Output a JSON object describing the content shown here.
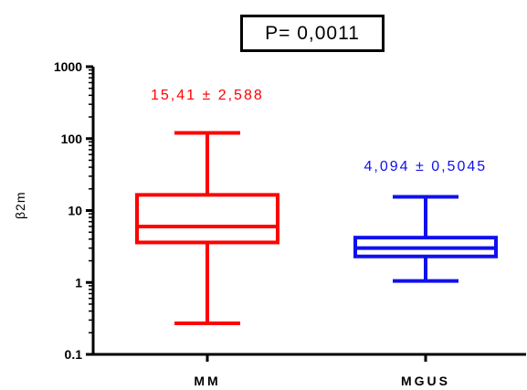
{
  "chart_data": {
    "type": "box",
    "categories": [
      "MM",
      "MGUS"
    ],
    "ylabel": "β2m",
    "yscale": "log",
    "ylim": [
      0.1,
      1000
    ],
    "yticks": [
      "0.1",
      "1",
      "10",
      "100",
      "1000"
    ],
    "grid": false,
    "title_box": "P= 0,0011",
    "boxes": [
      {
        "name": "MM",
        "min": 0.27,
        "q1": 3.6,
        "median": 6,
        "q3": 16.5,
        "max": 120,
        "annotation": "15,41 ± 2,588",
        "color": "#ff0000"
      },
      {
        "name": "MGUS",
        "min": 1.05,
        "q1": 2.3,
        "median": 3.0,
        "q3": 4.2,
        "max": 15.5,
        "annotation": "4,094 ± 0,5045",
        "color": "#1010ee"
      }
    ]
  }
}
